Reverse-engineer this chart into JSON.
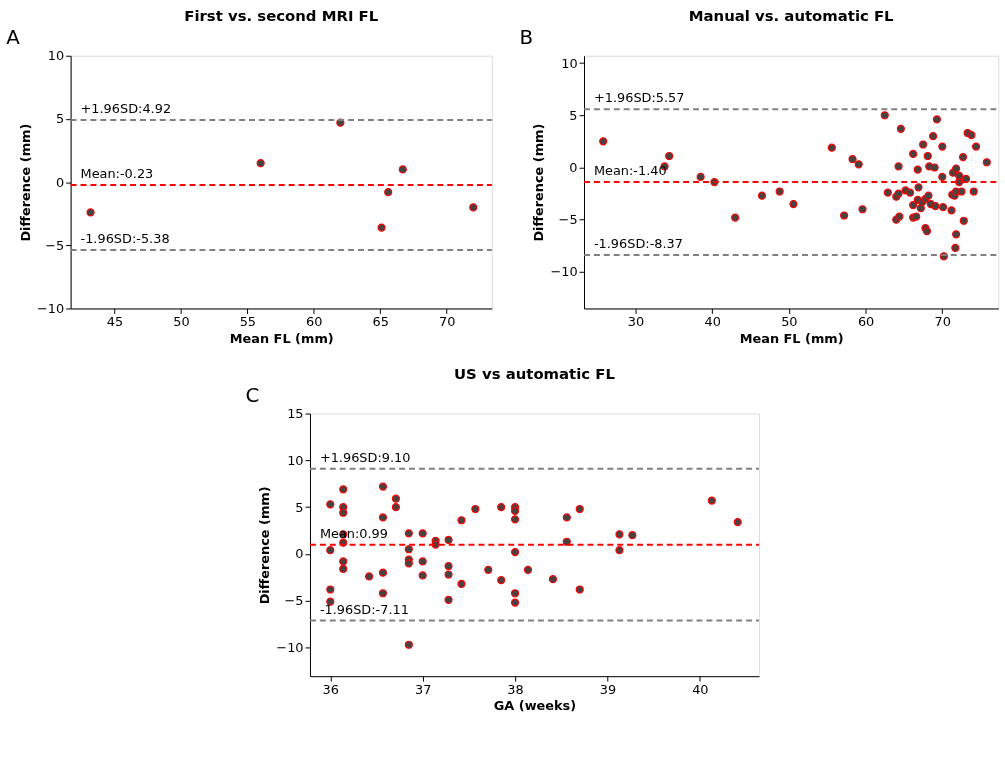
{
  "chart_data": [
    {
      "type": "scatter",
      "title": "First vs.  second MRI FL",
      "xlabel": "Mean FL (mm)",
      "ylabel": "Difference (mm)",
      "annotations": [
        "A"
      ],
      "xlim": [
        41.7,
        73.4
      ],
      "xticks": [
        45,
        50,
        55,
        60,
        65,
        70
      ],
      "ylim": [
        -10,
        10
      ],
      "yticks": [
        -10,
        -5,
        0,
        5,
        10
      ],
      "grid": false,
      "marker": "circle",
      "series": [
        {
          "color": "#444444",
          "x": [
            43.2,
            56,
            62,
            65.1,
            65.6,
            66.7,
            72
          ],
          "values": [
            -2.4,
            1.5,
            4.7,
            -3.6,
            -0.8,
            1.0,
            -2.0
          ]
        }
      ],
      "ref_lines": [
        {
          "axis": "y",
          "value": 4.92,
          "label": "+1.96SD:4.92",
          "color": "#808080",
          "line_style": "dashed"
        },
        {
          "axis": "y",
          "value": -0.23,
          "label": "Mean:-0.23",
          "color": "#ff0000",
          "line_style": "dashed"
        },
        {
          "axis": "y",
          "value": -5.38,
          "label": "-1.96SD:-5.38",
          "color": "#808080",
          "line_style": "dashed"
        }
      ]
    },
    {
      "type": "scatter",
      "title": "Manual vs.  automatic FL",
      "xlabel": "Mean FL (mm)",
      "ylabel": "Difference (mm)",
      "annotations": [
        "B"
      ],
      "xlim": [
        23.3,
        77.3
      ],
      "xticks": [
        30,
        40,
        50,
        60,
        70
      ],
      "ylim": [
        -13.5,
        10.7
      ],
      "yticks": [
        -10,
        -5,
        0,
        5,
        10
      ],
      "grid": false,
      "marker": "circle",
      "series": [
        {
          "color": "#444444",
          "x": [
            25.8,
            33.8,
            34.4,
            38.5,
            40.3,
            43.0,
            46.5,
            48.8,
            50.6,
            55.6,
            57.2,
            58.3,
            59.1,
            59.6,
            62.5,
            62.9,
            64.0,
            64.0,
            64.3,
            64.4,
            64.6,
            64.3,
            65.2,
            65.8,
            66.2,
            66.2,
            66.2,
            66.6,
            66.8,
            66.9,
            66.8,
            67.2,
            67.4,
            67.5,
            67.8,
            67.8,
            68.0,
            68.1,
            68.2,
            68.3,
            68.5,
            68.8,
            69.0,
            69.1,
            69.3,
            70.0,
            70.0,
            70.1,
            70.2,
            71.2,
            71.3,
            71.4,
            71.6,
            71.7,
            71.8,
            71.8,
            71.8,
            72.2,
            72.2,
            72.5,
            72.7,
            72.8,
            73.1,
            73.3,
            73.8,
            74.1,
            74.4,
            75.8
          ],
          "values": [
            2.5,
            0.1,
            1.1,
            -0.9,
            -1.4,
            -4.8,
            -2.7,
            -2.3,
            -3.5,
            1.9,
            -4.6,
            0.8,
            0.3,
            -4.0,
            5.0,
            -2.4,
            -2.8,
            -5.0,
            0.1,
            -4.7,
            3.7,
            -2.5,
            -2.2,
            -2.4,
            1.3,
            -3.6,
            -4.8,
            -4.7,
            -0.2,
            -1.9,
            -3.1,
            -3.9,
            -3.3,
            2.2,
            -3.0,
            -5.8,
            -6.1,
            1.1,
            -2.7,
            0.1,
            -3.5,
            3.0,
            0.0,
            -3.7,
            4.6,
            2.0,
            -0.9,
            -3.8,
            -8.5,
            -4.1,
            -2.6,
            -0.5,
            -2.7,
            -7.7,
            -6.4,
            -0.1,
            -2.3,
            -1.4,
            -0.8,
            -2.3,
            1.0,
            -5.1,
            -1.1,
            3.3,
            3.1,
            -2.3,
            2.0,
            0.5
          ]
        }
      ],
      "ref_lines": [
        {
          "axis": "y",
          "value": 5.57,
          "label": "+1.96SD:5.57",
          "color": "#808080",
          "line_style": "dashed"
        },
        {
          "axis": "y",
          "value": -1.4,
          "label": "Mean:-1.40",
          "color": "#ff0000",
          "line_style": "dashed"
        },
        {
          "axis": "y",
          "value": -8.37,
          "label": "-1.96SD:-8.37",
          "color": "#808080",
          "line_style": "dashed"
        }
      ]
    },
    {
      "type": "scatter",
      "title": "US vs automatic FL",
      "xlabel": "GA (weeks)",
      "ylabel": "Difference (mm)",
      "annotations": [
        "C"
      ],
      "xlim": [
        35.78,
        40.64
      ],
      "xticks": [
        36,
        37,
        38,
        39,
        40
      ],
      "ylim": [
        -13.06,
        15
      ],
      "yticks": [
        -10,
        -5,
        0,
        5,
        10,
        15
      ],
      "grid": false,
      "marker": "circle",
      "series": [
        {
          "color": "#444444",
          "x": [
            36.0,
            36.0,
            36.0,
            36.0,
            36.14,
            36.14,
            36.14,
            36.14,
            36.14,
            36.14,
            36.14,
            36.42,
            36.57,
            36.57,
            36.57,
            36.57,
            36.71,
            36.71,
            36.85,
            36.85,
            36.85,
            36.85,
            36.85,
            37.0,
            37.0,
            37.0,
            37.14,
            37.14,
            37.28,
            37.28,
            37.28,
            37.28,
            37.42,
            37.42,
            37.57,
            37.71,
            37.85,
            37.85,
            38.0,
            38.0,
            38.0,
            38.0,
            38.0,
            38.0,
            38.14,
            38.41,
            38.56,
            38.56,
            38.7,
            38.7,
            39.13,
            39.13,
            39.27,
            40.13,
            40.41
          ],
          "values": [
            5.3,
            0.4,
            -3.8,
            -5.1,
            6.9,
            5.0,
            4.4,
            2.1,
            1.2,
            -0.8,
            -1.6,
            -2.4,
            7.2,
            3.9,
            -2.0,
            -4.2,
            5.9,
            5.0,
            2.2,
            0.5,
            -0.6,
            -1.0,
            -9.7,
            2.2,
            -0.8,
            -2.3,
            1.4,
            1.0,
            1.5,
            -1.3,
            -2.2,
            -4.9,
            3.6,
            -3.2,
            4.8,
            -1.7,
            5.0,
            -2.8,
            5.0,
            4.6,
            3.7,
            0.2,
            -4.2,
            -5.2,
            -1.7,
            -2.7,
            3.9,
            1.3,
            4.8,
            -3.8,
            2.1,
            0.4,
            2.0,
            5.7,
            3.4
          ]
        }
      ],
      "ref_lines": [
        {
          "axis": "y",
          "value": 9.1,
          "label": "+1.96SD:9.10",
          "color": "#808080",
          "line_style": "dashed"
        },
        {
          "axis": "y",
          "value": 0.99,
          "label": "Mean:0.99",
          "color": "#ff0000",
          "line_style": "dashed"
        },
        {
          "axis": "y",
          "value": -7.11,
          "label": "-1.96SD:-7.11",
          "color": "#808080",
          "line_style": "dashed"
        }
      ]
    }
  ]
}
